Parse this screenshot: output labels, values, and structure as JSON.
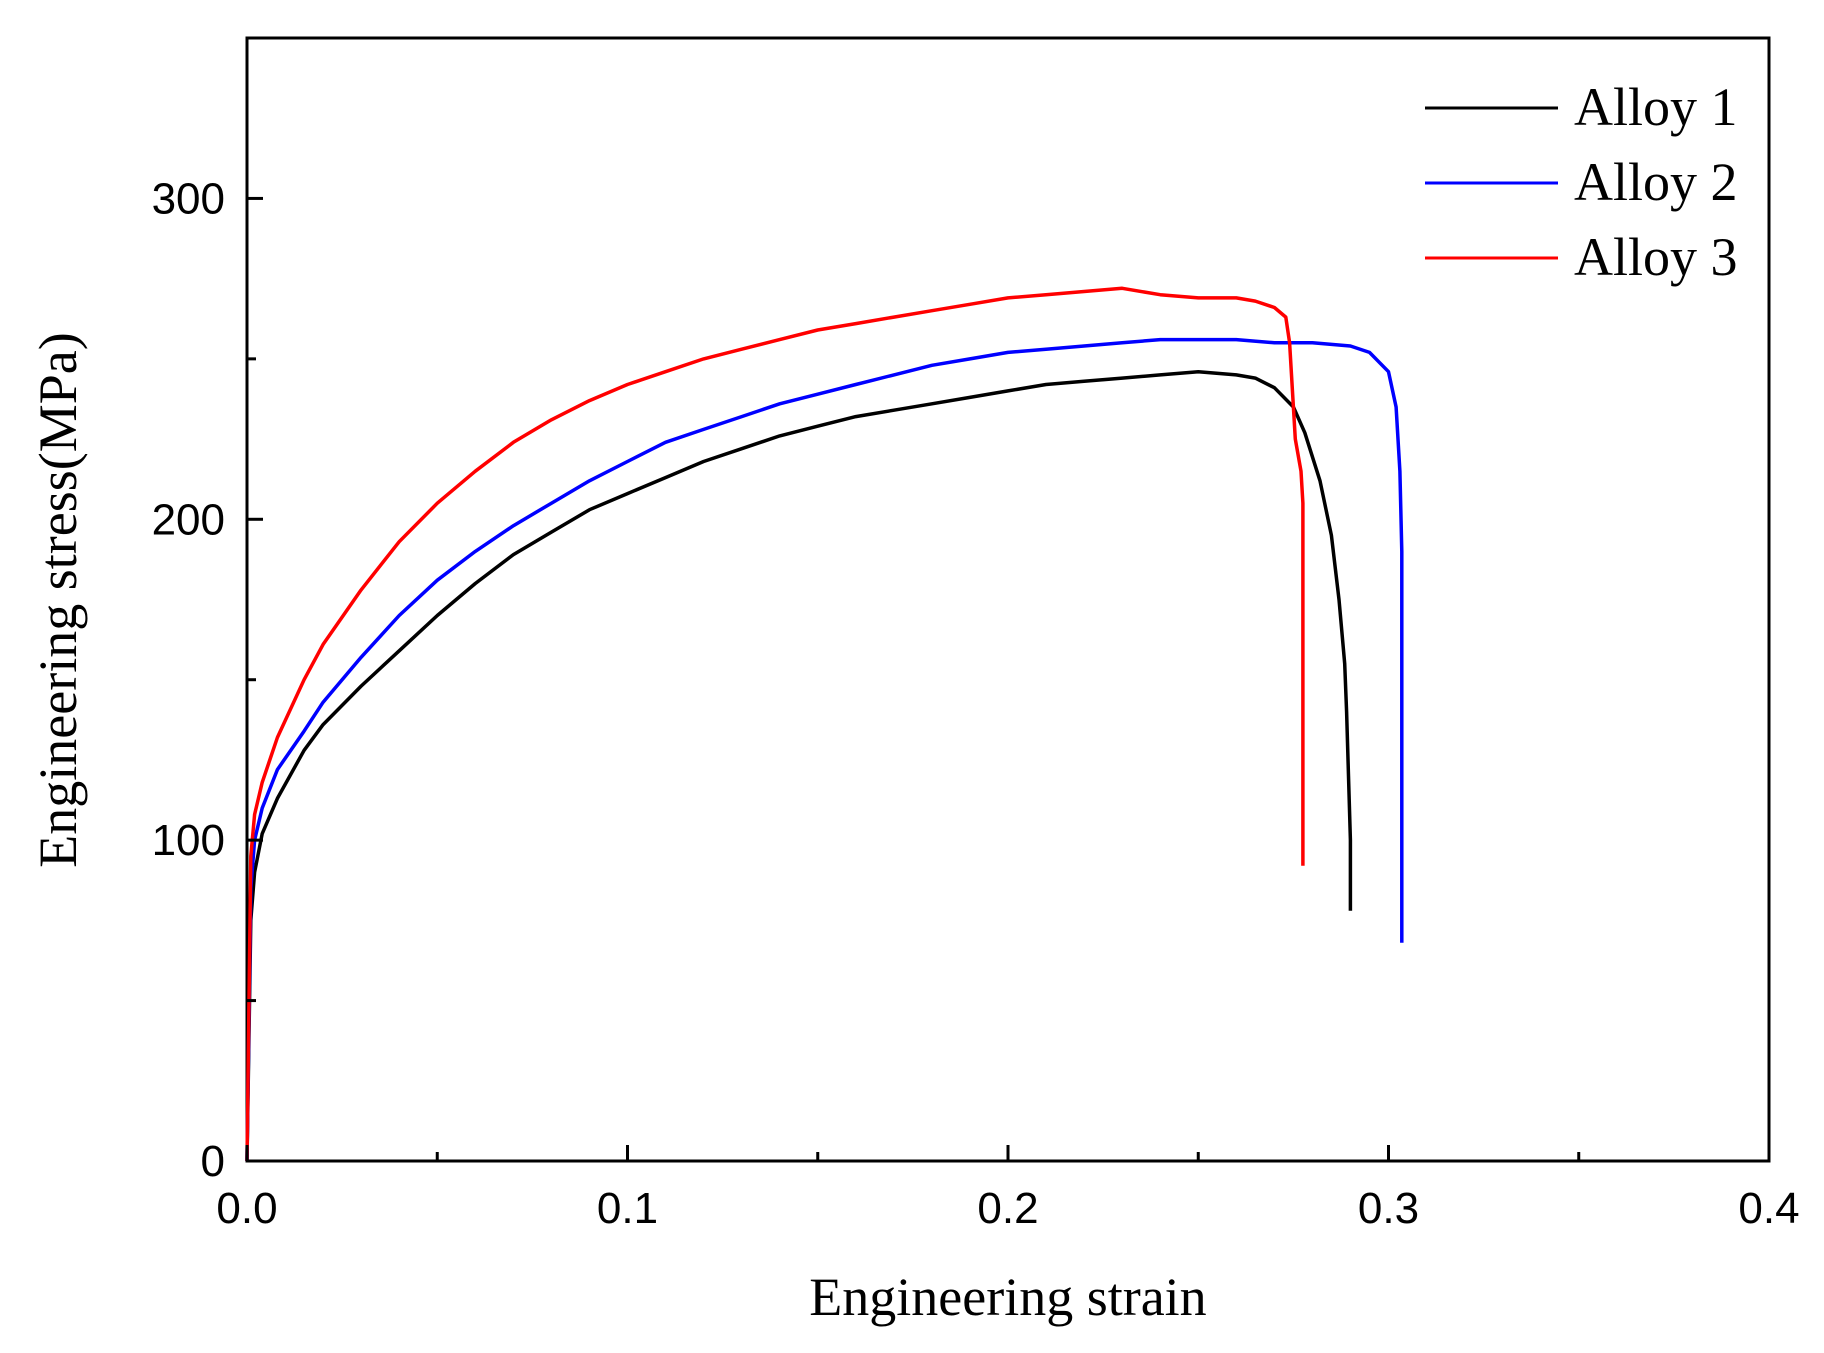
{
  "chart_data": {
    "type": "line",
    "title": "",
    "xlabel": "Engineering strain",
    "ylabel": "Engineering stress(MPa)",
    "xlim": [
      0,
      0.4
    ],
    "ylim": [
      0,
      350
    ],
    "xticks": [
      0.0,
      0.1,
      0.2,
      0.3,
      0.4
    ],
    "xtick_labels": [
      "0.0",
      "0.1",
      "0.2",
      "0.3",
      "0.4"
    ],
    "xminor": [
      0.05,
      0.15,
      0.25,
      0.35
    ],
    "yticks": [
      0,
      100,
      200,
      300
    ],
    "ytick_labels": [
      "0",
      "100",
      "200",
      "300"
    ],
    "yminor": [
      50,
      150,
      250
    ],
    "grid": false,
    "legend_position": "top-right",
    "series": [
      {
        "name": "Alloy 1",
        "color": "#000000",
        "points": [
          [
            0,
            0
          ],
          [
            0.001,
            75
          ],
          [
            0.002,
            90
          ],
          [
            0.004,
            102
          ],
          [
            0.008,
            113
          ],
          [
            0.015,
            128
          ],
          [
            0.02,
            136
          ],
          [
            0.03,
            148
          ],
          [
            0.04,
            159
          ],
          [
            0.05,
            170
          ],
          [
            0.06,
            180
          ],
          [
            0.07,
            189
          ],
          [
            0.08,
            196
          ],
          [
            0.09,
            203
          ],
          [
            0.1,
            208
          ],
          [
            0.11,
            213
          ],
          [
            0.12,
            218
          ],
          [
            0.13,
            222
          ],
          [
            0.14,
            226
          ],
          [
            0.15,
            229
          ],
          [
            0.16,
            232
          ],
          [
            0.17,
            234
          ],
          [
            0.18,
            236
          ],
          [
            0.19,
            238
          ],
          [
            0.2,
            240
          ],
          [
            0.21,
            242
          ],
          [
            0.22,
            243
          ],
          [
            0.23,
            244
          ],
          [
            0.24,
            245
          ],
          [
            0.25,
            246
          ],
          [
            0.26,
            245
          ],
          [
            0.265,
            244
          ],
          [
            0.27,
            241
          ],
          [
            0.275,
            235
          ],
          [
            0.278,
            227
          ],
          [
            0.282,
            212
          ],
          [
            0.285,
            195
          ],
          [
            0.287,
            175
          ],
          [
            0.2885,
            155
          ],
          [
            0.289,
            140
          ],
          [
            0.2895,
            120
          ],
          [
            0.29,
            100
          ],
          [
            0.29,
            78
          ]
        ]
      },
      {
        "name": "Alloy 2",
        "color": "#0000ff",
        "points": [
          [
            0,
            0
          ],
          [
            0.001,
            85
          ],
          [
            0.002,
            100
          ],
          [
            0.004,
            110
          ],
          [
            0.008,
            122
          ],
          [
            0.015,
            134
          ],
          [
            0.02,
            143
          ],
          [
            0.03,
            157
          ],
          [
            0.04,
            170
          ],
          [
            0.05,
            181
          ],
          [
            0.06,
            190
          ],
          [
            0.07,
            198
          ],
          [
            0.08,
            205
          ],
          [
            0.09,
            212
          ],
          [
            0.1,
            218
          ],
          [
            0.11,
            224
          ],
          [
            0.12,
            228
          ],
          [
            0.13,
            232
          ],
          [
            0.14,
            236
          ],
          [
            0.15,
            239
          ],
          [
            0.16,
            242
          ],
          [
            0.17,
            245
          ],
          [
            0.18,
            248
          ],
          [
            0.19,
            250
          ],
          [
            0.2,
            252
          ],
          [
            0.21,
            253
          ],
          [
            0.22,
            254
          ],
          [
            0.23,
            255
          ],
          [
            0.24,
            256
          ],
          [
            0.25,
            256
          ],
          [
            0.26,
            256
          ],
          [
            0.27,
            255
          ],
          [
            0.28,
            255
          ],
          [
            0.29,
            254
          ],
          [
            0.295,
            252
          ],
          [
            0.3,
            246
          ],
          [
            0.302,
            235
          ],
          [
            0.303,
            215
          ],
          [
            0.3035,
            190
          ],
          [
            0.3035,
            140
          ],
          [
            0.3035,
            68
          ]
        ]
      },
      {
        "name": "Alloy 3",
        "color": "#ff0000",
        "points": [
          [
            0,
            0
          ],
          [
            0.001,
            95
          ],
          [
            0.002,
            108
          ],
          [
            0.004,
            118
          ],
          [
            0.008,
            132
          ],
          [
            0.015,
            150
          ],
          [
            0.02,
            161
          ],
          [
            0.03,
            178
          ],
          [
            0.04,
            193
          ],
          [
            0.05,
            205
          ],
          [
            0.06,
            215
          ],
          [
            0.07,
            224
          ],
          [
            0.08,
            231
          ],
          [
            0.09,
            237
          ],
          [
            0.1,
            242
          ],
          [
            0.11,
            246
          ],
          [
            0.12,
            250
          ],
          [
            0.13,
            253
          ],
          [
            0.14,
            256
          ],
          [
            0.15,
            259
          ],
          [
            0.16,
            261
          ],
          [
            0.17,
            263
          ],
          [
            0.18,
            265
          ],
          [
            0.19,
            267
          ],
          [
            0.2,
            269
          ],
          [
            0.21,
            270
          ],
          [
            0.22,
            271
          ],
          [
            0.23,
            272
          ],
          [
            0.24,
            270
          ],
          [
            0.25,
            269
          ],
          [
            0.26,
            269
          ],
          [
            0.265,
            268
          ],
          [
            0.27,
            266
          ],
          [
            0.273,
            263
          ],
          [
            0.274,
            255
          ],
          [
            0.2745,
            245
          ],
          [
            0.275,
            235
          ],
          [
            0.2755,
            225
          ],
          [
            0.277,
            215
          ],
          [
            0.2775,
            205
          ],
          [
            0.2775,
            150
          ],
          [
            0.2775,
            92
          ]
        ]
      }
    ]
  }
}
